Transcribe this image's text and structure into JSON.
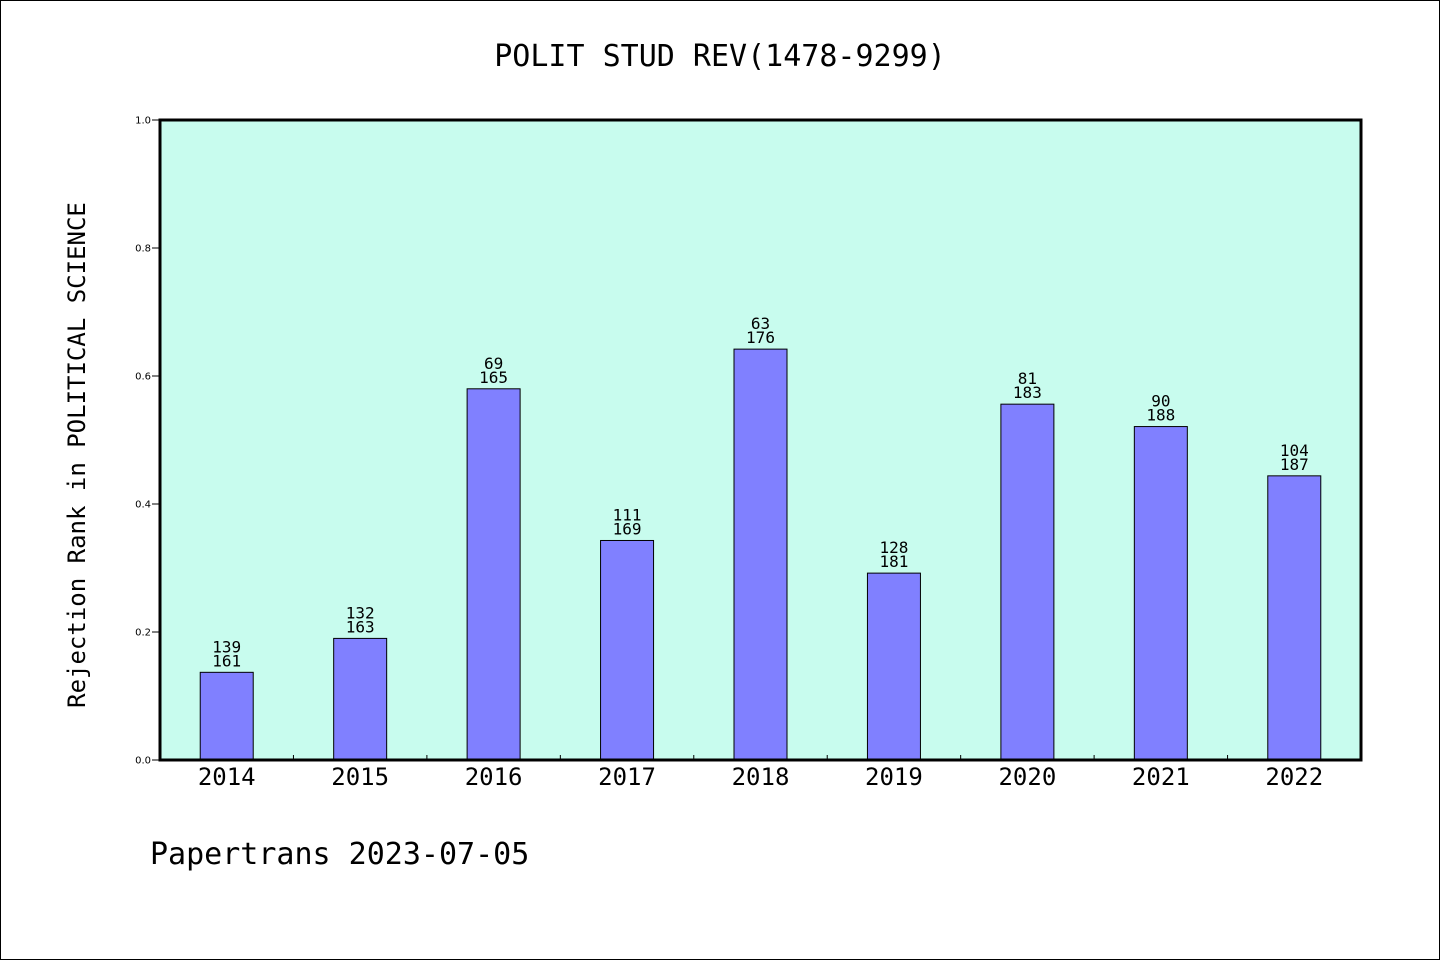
{
  "chart_data": {
    "type": "bar",
    "title": "POLIT STUD REV(1478-9299)",
    "ylabel": "Rejection Rank in POLITICAL SCIENCE",
    "xlabel": "",
    "ylim": [
      0,
      1.0
    ],
    "yticks": [
      "0.0",
      "0.2",
      "0.4",
      "0.6",
      "0.8",
      "1.0"
    ],
    "categories": [
      "2014",
      "2015",
      "2016",
      "2017",
      "2018",
      "2019",
      "2020",
      "2021",
      "2022"
    ],
    "values": [
      0.137,
      0.19,
      0.58,
      0.343,
      0.642,
      0.292,
      0.556,
      0.521,
      0.444
    ],
    "labels_top": [
      "139",
      "132",
      "69",
      "111",
      "63",
      "128",
      "81",
      "90",
      "104"
    ],
    "labels_bottom": [
      "161",
      "163",
      "165",
      "169",
      "176",
      "181",
      "183",
      "188",
      "187"
    ],
    "grid": false,
    "colors": {
      "plot_bg": "#c8fcee",
      "bar": "#8080ff",
      "bar_edge": "#000000"
    }
  },
  "footer": "Papertrans 2023-07-05"
}
